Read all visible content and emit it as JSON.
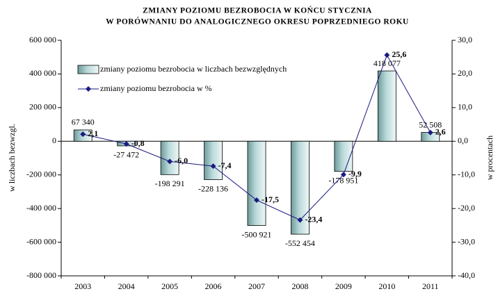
{
  "chart_data": {
    "type": "bar_line",
    "title_lines": [
      "ZMIANY POZIOMU BEZROBOCIA W KOŃCU STYCZNIA",
      "W PORÓWNANIU DO ANALOGICZNEGO OKRESU POPRZEDNIEGO ROKU"
    ],
    "ylabel": "w liczbach bezwzgl.",
    "y2label": "w procentach",
    "categories": [
      "2003",
      "2004",
      "2005",
      "2006",
      "2007",
      "2008",
      "2009",
      "2010",
      "2011"
    ],
    "series": [
      {
        "name": "zmiany poziomu bezrobocia w liczbach bezwzględnych",
        "type": "bar",
        "color": "#b9d9d9",
        "values": [
          67340,
          -27472,
          -198291,
          -228136,
          -500921,
          -552454,
          -178951,
          418077,
          52508
        ],
        "value_labels": [
          "67 340",
          "-27 472",
          "-198 291",
          "-228 136",
          "-500 921",
          "-552 454",
          "-178 951",
          "418 077",
          "52 508"
        ]
      },
      {
        "name": "zmiany poziomu bezrobocia w %",
        "type": "line",
        "axis": "y2",
        "color": "#1a1a80",
        "values": [
          2.1,
          -0.8,
          -6.0,
          -7.4,
          -17.5,
          -23.4,
          -9.9,
          25.6,
          2.6
        ],
        "value_labels": [
          "2,1",
          "-0,8",
          "-6,0",
          "-7,4",
          "-17,5",
          "-23,4",
          "-9,9",
          "25,6",
          "2,6"
        ]
      }
    ],
    "ylim": [
      -800000,
      600000
    ],
    "yticks": [
      {
        "value": -800000,
        "label": "-800 000"
      },
      {
        "value": -600000,
        "label": "-600 000"
      },
      {
        "value": -400000,
        "label": "-400 000"
      },
      {
        "value": -200000,
        "label": "-200 000"
      },
      0,
      {
        "value": 200000,
        "label": "200 000"
      },
      {
        "value": 400000,
        "label": "400 000"
      },
      {
        "value": 600000,
        "label": "600 000"
      }
    ],
    "y2lim": [
      -40,
      30
    ],
    "y2ticks": [
      {
        "value": -40,
        "label": "-40,0"
      },
      {
        "value": -30,
        "label": "-30,0"
      },
      {
        "value": -20,
        "label": "-20,0"
      },
      {
        "value": -10,
        "label": "-10,0"
      },
      {
        "value": 0,
        "label": "0,0"
      },
      {
        "value": 10,
        "label": "10,0"
      },
      {
        "value": 20,
        "label": "20,0"
      },
      {
        "value": 30,
        "label": "30,0"
      }
    ],
    "legend": "upper left"
  }
}
